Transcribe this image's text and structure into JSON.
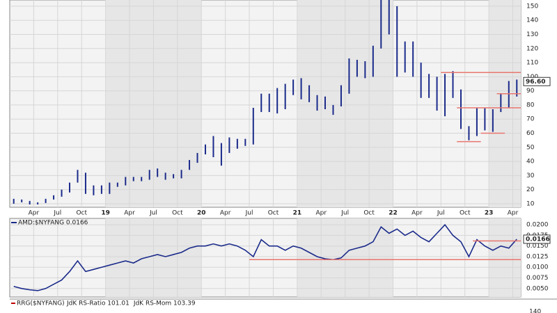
{
  "chart_data": [
    {
      "type": "ohlc",
      "color": "#1a2a8a",
      "grid": true,
      "categories": [
        null,
        null,
        null,
        "Apr",
        null,
        null,
        "Jul",
        null,
        null,
        "Oct",
        null,
        null,
        "19",
        null,
        null,
        "Apr",
        null,
        null,
        "Jul",
        null,
        null,
        "Oct",
        null,
        null,
        "20",
        null,
        null,
        "Apr",
        null,
        null,
        "Jul",
        null,
        null,
        "Oct",
        null,
        null,
        "21",
        null,
        null,
        "Apr",
        null,
        null,
        "Jul",
        null,
        null,
        "Oct",
        null,
        null,
        "22",
        null,
        null,
        "Apr",
        null,
        null,
        "Jul",
        null,
        null,
        "Oct",
        null,
        null,
        "23",
        null,
        null,
        "Apr"
      ],
      "high": [
        13.5,
        13,
        12,
        11,
        13.5,
        16,
        20,
        25,
        34,
        32,
        23,
        23,
        25,
        25,
        29,
        29,
        29,
        34,
        35,
        32,
        31,
        34,
        41,
        46,
        52,
        58,
        53,
        57,
        56,
        56,
        78,
        88,
        88,
        92,
        95,
        98,
        99,
        94,
        87,
        86,
        80,
        94,
        113,
        112,
        111,
        122,
        158,
        155,
        150,
        125,
        125,
        110,
        102,
        100,
        102,
        104,
        91,
        65,
        78,
        78,
        77,
        88,
        97,
        98
      ],
      "low": [
        10,
        11,
        9.5,
        9.5,
        10.5,
        13,
        15,
        18,
        25,
        17,
        16,
        17,
        17,
        22,
        23,
        26,
        26,
        27,
        29,
        27,
        28,
        28,
        34,
        39,
        45,
        43,
        37,
        46,
        49,
        51,
        52,
        75,
        75,
        74,
        77,
        87,
        84,
        82,
        76,
        77,
        73,
        79,
        88,
        100,
        99,
        100,
        120,
        130,
        100,
        103,
        100,
        85,
        85,
        76,
        72,
        85,
        63,
        55,
        58,
        62,
        61,
        75,
        78,
        86
      ],
      "ylim": [
        7.5,
        154.4
      ],
      "yticks": [
        10,
        20,
        30,
        40,
        50,
        60,
        70,
        80,
        90,
        100,
        110,
        120,
        130,
        140,
        150
      ],
      "hlines": [
        {
          "y": 103,
          "x": [
            54,
            63
          ]
        },
        {
          "y": 88,
          "x": [
            61,
            63
          ]
        },
        {
          "y": 78,
          "x": [
            56,
            63
          ]
        },
        {
          "y": 60,
          "x": [
            59,
            61
          ]
        },
        {
          "y": 54,
          "x": [
            56,
            58
          ]
        }
      ],
      "hline_color": "#e8766e",
      "last": 96.6,
      "last_label": "96.60"
    },
    {
      "type": "line",
      "title": "AMD:$NYFANG 0.0166",
      "color": "#1a2a8a",
      "grid": true,
      "values": [
        0.0055,
        0.005,
        0.0047,
        0.0045,
        0.005,
        0.006,
        0.007,
        0.009,
        0.0115,
        0.009,
        0.0095,
        0.01,
        0.0105,
        0.011,
        0.0115,
        0.011,
        0.012,
        0.0125,
        0.013,
        0.0125,
        0.013,
        0.0135,
        0.0145,
        0.015,
        0.015,
        0.0155,
        0.015,
        0.0155,
        0.015,
        0.014,
        0.0125,
        0.0165,
        0.015,
        0.015,
        0.014,
        0.015,
        0.0145,
        0.0135,
        0.0125,
        0.012,
        0.0118,
        0.0122,
        0.014,
        0.0145,
        0.015,
        0.016,
        0.0195,
        0.018,
        0.019,
        0.0175,
        0.0185,
        0.017,
        0.016,
        0.018,
        0.02,
        0.0175,
        0.016,
        0.0125,
        0.0165,
        0.015,
        0.014,
        0.015,
        0.0145,
        0.0166
      ],
      "ylim": [
        0.003,
        0.0215
      ],
      "yticks": [
        {
          "value": 0.005,
          "label": "0.0050"
        },
        {
          "value": 0.0075,
          "label": "0.0075"
        },
        {
          "value": 0.01,
          "label": "0.0100"
        },
        {
          "value": 0.0125,
          "label": "0.0125"
        },
        {
          "value": 0.015,
          "label": "0.0150"
        },
        {
          "value": 0.0175,
          "label": "0.0175"
        },
        {
          "value": 0.02,
          "label": "0.0200"
        }
      ],
      "hlines": [
        {
          "y": 0.0118,
          "x": [
            30,
            63
          ]
        },
        {
          "y": 0.0162,
          "x": [
            58,
            63
          ]
        }
      ],
      "hline_color": "#e8766e",
      "last_label": "0.0166"
    },
    {
      "type": "legend-only",
      "title": "RRG($NYFANG)",
      "series": [
        {
          "name": "JdK RS-Ratio 101.01",
          "color": "#c00000"
        },
        {
          "name": "JdK RS-Mom 103.39",
          "color": "#2e7d32"
        }
      ],
      "yticks": [
        140
      ]
    }
  ]
}
